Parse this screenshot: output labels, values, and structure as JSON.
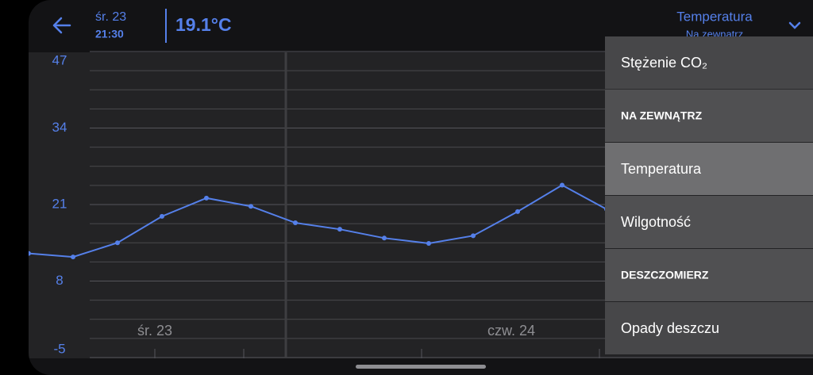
{
  "header": {
    "date": "śr. 23",
    "time": "21:30",
    "reading": "19.1°C",
    "metric": "Temperatura",
    "location": "Na zewnątrz"
  },
  "chart_data": {
    "type": "line",
    "values": [
      12.7,
      12.1,
      14.5,
      19.0,
      22.1,
      20.7,
      17.9,
      16.8,
      15.3,
      14.4,
      15.7,
      19.8,
      24.3,
      20.2
    ],
    "color": "#5580ea",
    "ylim": [
      -5,
      47
    ],
    "yticks": [
      47,
      34,
      21,
      8,
      -5
    ],
    "day_labels": [
      "śr. 23",
      "czw. 24"
    ],
    "grid": true
  },
  "menu": {
    "items": [
      "Stężenie CO₂",
      "NA ZEWNĄTRZ",
      "Temperatura",
      "Wilgotność",
      "DESZCZOMIERZ",
      "Opady deszczu"
    ],
    "selected": 2
  }
}
